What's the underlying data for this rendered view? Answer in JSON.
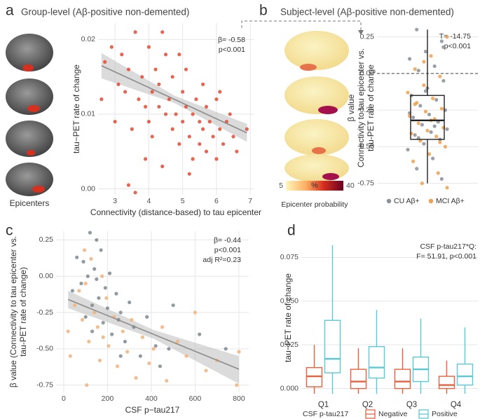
{
  "chart_data": [
    {
      "type": "scatter",
      "panel": "a",
      "title": "Group-level (Aβ-positive non-demented)",
      "image_caption": "Epicenters",
      "xlabel": "Connectivity (distance-based) to tau epicenter",
      "ylabel": "tau−PET rate of change",
      "xlim": [
        2.5,
        7.1
      ],
      "ylim": [
        -0.0008,
        0.0222
      ],
      "xticks": [
        3,
        4,
        5,
        6,
        7
      ],
      "yticks": [
        {
          "value": 0,
          "label": "0.00"
        },
        {
          "value": 0.01,
          "label": "0.01"
        },
        {
          "value": 0.02,
          "label": "0.02"
        }
      ],
      "grid": true,
      "annotations": [
        "β= -0.58",
        "p<0.001"
      ],
      "series": [
        {
          "color": "#e34a33",
          "x": [
            2.6,
            2.7,
            2.9,
            3.0,
            3.1,
            3.2,
            3.3,
            3.4,
            3.5,
            3.6,
            3.7,
            3.8,
            3.9,
            3.9,
            4.0,
            4.0,
            4.1,
            4.1,
            4.2,
            4.3,
            4.3,
            4.4,
            4.5,
            4.5,
            4.6,
            4.7,
            4.7,
            4.8,
            4.9,
            5.0,
            5.0,
            5.1,
            5.1,
            5.2,
            5.3,
            5.3,
            5.4,
            5.5,
            5.5,
            5.6,
            5.7,
            5.7,
            5.8,
            5.9,
            6.0,
            6.0,
            6.1,
            6.2,
            6.3,
            6.4,
            6.5,
            6.6,
            6.9,
            3.6,
            4.4,
            4.9,
            5.6,
            6.1,
            3.4,
            5.2
          ],
          "values": [
            0.012,
            0.017,
            0.019,
            0.009,
            0.014,
            0.018,
            0.013,
            0.016,
            0.008,
            0.021,
            0.012,
            0.015,
            0.004,
            0.011,
            0.019,
            0.009,
            0.013,
            0.007,
            0.016,
            0.011,
            0.014,
            0.003,
            0.01,
            0.018,
            0.012,
            0.008,
            0.015,
            0.01,
            0.006,
            0.013,
            0.009,
            0.011,
            0.016,
            0.007,
            0.01,
            0.004,
            0.012,
            0.009,
            0.006,
            0.008,
            0.011,
            0.005,
            0.009,
            0.007,
            0.012,
            0.004,
            0.008,
            0.006,
            0.009,
            0.01,
            0.007,
            0.005,
            0.008,
            -0.0005,
            0.021,
            0.018,
            0.014,
            0.013,
            0.0005,
            0.002
          ]
        }
      ],
      "fit": {
        "color": "#8c8c8c",
        "x": [
          2.6,
          4.75,
          6.9
        ],
        "y": [
          0.0165,
          0.012,
          0.0075
        ],
        "ci_lower": [
          0.0148,
          0.0115,
          0.0063
        ],
        "ci_upper": [
          0.0182,
          0.0125,
          0.0087
        ]
      }
    },
    {
      "type": "box",
      "panel": "b",
      "title": "Subject-level (Aβ-positive non-demented)",
      "ylabel": [
        "β value",
        "Connectivity to tau epicenter vs.",
        "tau-PET rate of change"
      ],
      "ylim": [
        -0.79,
        0.32
      ],
      "yticks": [
        0.25,
        {
          "value": 0,
          "label": "0.00"
        },
        -0.25,
        {
          "value": -0.5,
          "label": "-0.50"
        },
        -0.75
      ],
      "grid": true,
      "hline": 0,
      "annotations": [
        "T= -14.75",
        "p<0.001"
      ],
      "box": {
        "whislo": -0.75,
        "q1": -0.45,
        "med": -0.32,
        "q3": -0.15,
        "whishi": 0.3
      },
      "series": [
        {
          "name": "CU Aβ+",
          "color": "#8a9196",
          "values": [
            0.3,
            0.22,
            0.15,
            0.1,
            0.05,
            0.02,
            -0.05,
            -0.1,
            -0.15,
            -0.18,
            -0.22,
            -0.25,
            -0.28,
            -0.3,
            -0.33,
            -0.35,
            -0.38,
            -0.4,
            -0.42,
            -0.45,
            -0.48,
            -0.52,
            -0.58,
            -0.65,
            -0.72,
            -0.12,
            -0.27,
            -0.36,
            -0.44,
            0.18
          ]
        },
        {
          "name": "MCI Aβ+",
          "color": "#f0a04b",
          "values": [
            0.25,
            0.12,
            0.03,
            -0.02,
            -0.08,
            -0.13,
            -0.17,
            -0.2,
            -0.24,
            -0.26,
            -0.29,
            -0.31,
            -0.34,
            -0.37,
            -0.39,
            -0.41,
            -0.43,
            -0.46,
            -0.5,
            -0.55,
            -0.6,
            -0.68,
            -0.75,
            -0.78,
            -0.32,
            -0.21,
            -0.47,
            0.08
          ]
        }
      ],
      "colorbar": {
        "title": "%",
        "label": "Epicenter probability",
        "lim": [
          5,
          40
        ],
        "ticks": [
          5,
          40
        ]
      }
    },
    {
      "type": "scatter",
      "panel": "c",
      "xlabel": "CSF p−tau217",
      "ylabel": [
        "β value (Connectivity to tau epicenter vs.",
        "tau-PET rate of change)"
      ],
      "xlim": [
        -35,
        845
      ],
      "ylim": [
        -0.8,
        0.31
      ],
      "xticks": [
        0,
        200,
        400,
        600,
        800
      ],
      "yticks": [
        0.25,
        {
          "value": 0,
          "label": "0.00"
        },
        -0.25,
        {
          "value": -0.5,
          "label": "-0.50"
        },
        -0.75
      ],
      "grid": true,
      "annotations": [
        "β= -0.44",
        "p<0.001",
        "adj R²=0.23"
      ],
      "series": [
        {
          "color": "#7f8a8e",
          "x": [
            40,
            60,
            80,
            90,
            100,
            110,
            120,
            130,
            140,
            150,
            160,
            170,
            180,
            190,
            200,
            210,
            220,
            240,
            250,
            260,
            280,
            300,
            320,
            350,
            380,
            420,
            440,
            480,
            500,
            620,
            740,
            130,
            150,
            260
          ],
          "values": [
            -0.1,
            0.13,
            -0.05,
            0.1,
            -0.28,
            0.0,
            0.3,
            -0.2,
            0.05,
            0.25,
            -0.15,
            0.18,
            -0.32,
            -0.08,
            -0.22,
            0.02,
            -0.4,
            -0.12,
            -0.3,
            -0.25,
            -0.45,
            -0.18,
            -0.35,
            -0.55,
            -0.28,
            -0.48,
            -0.62,
            -0.5,
            -0.2,
            -0.4,
            -0.5,
            -0.38,
            -0.02,
            -0.55
          ]
        },
        {
          "color": "#f2b27a",
          "x": [
            20,
            30,
            50,
            70,
            85,
            95,
            105,
            115,
            125,
            140,
            155,
            165,
            175,
            195,
            205,
            230,
            245,
            270,
            290,
            310,
            330,
            360,
            390,
            410,
            450,
            470,
            520,
            560,
            600,
            650,
            700,
            790,
            800,
            100,
            180
          ],
          "values": [
            -0.38,
            -0.55,
            -0.2,
            -0.1,
            -0.3,
            0.18,
            -0.75,
            -0.45,
            0.12,
            -0.25,
            -0.35,
            -0.58,
            0.0,
            -0.15,
            -0.48,
            -0.28,
            -0.62,
            -0.38,
            -0.52,
            -0.3,
            -0.7,
            -0.42,
            -0.6,
            -0.5,
            -0.35,
            -0.72,
            -0.45,
            -0.55,
            -0.25,
            -0.65,
            -0.58,
            -0.75,
            -0.52,
            -0.05,
            -0.42
          ]
        }
      ],
      "fit": {
        "color": "#8c8c8c",
        "x": [
          20,
          410,
          800
        ],
        "y": [
          -0.16,
          -0.4,
          -0.64
        ],
        "ci_lower": [
          -0.22,
          -0.43,
          -0.74
        ],
        "ci_upper": [
          -0.1,
          -0.37,
          -0.55
        ]
      }
    },
    {
      "type": "box",
      "panel": "d",
      "ylabel": "tau−PET rate of change",
      "categories": [
        "Q1",
        "Q2",
        "Q3",
        "Q4"
      ],
      "ylim": [
        -0.005,
        0.086
      ],
      "yticks": [
        {
          "value": 0,
          "label": "0.000"
        },
        0.025,
        {
          "value": 0.05,
          "label": "0.050"
        },
        0.075
      ],
      "grid": true,
      "annotations": [
        "CSF p-tau217*Q:",
        "F= 51.91, p<0.001"
      ],
      "legend_title": "CSF p-tau217",
      "series": [
        {
          "name": "Negative",
          "color": "#e8603c",
          "boxes": [
            {
              "whislo": -0.003,
              "q1": 0.001,
              "med": 0.007,
              "q3": 0.012,
              "whishi": 0.025
            },
            {
              "whislo": -0.003,
              "q1": 0.0,
              "med": 0.004,
              "q3": 0.011,
              "whishi": 0.023
            },
            {
              "whislo": -0.003,
              "q1": 0.0,
              "med": 0.004,
              "q3": 0.011,
              "whishi": 0.023
            },
            {
              "whislo": -0.003,
              "q1": 0.0,
              "med": 0.002,
              "q3": 0.007,
              "whishi": 0.016
            }
          ]
        },
        {
          "name": "Positive",
          "color": "#5bc8d6",
          "boxes": [
            {
              "whislo": -0.003,
              "q1": 0.009,
              "med": 0.017,
              "q3": 0.039,
              "whishi": 0.082
            },
            {
              "whislo": -0.003,
              "q1": 0.006,
              "med": 0.012,
              "q3": 0.024,
              "whishi": 0.045
            },
            {
              "whislo": -0.003,
              "q1": 0.004,
              "med": 0.011,
              "q3": 0.018,
              "whishi": 0.04
            },
            {
              "whislo": -0.003,
              "q1": 0.002,
              "med": 0.007,
              "q3": 0.014,
              "whishi": 0.035
            }
          ]
        }
      ]
    }
  ]
}
